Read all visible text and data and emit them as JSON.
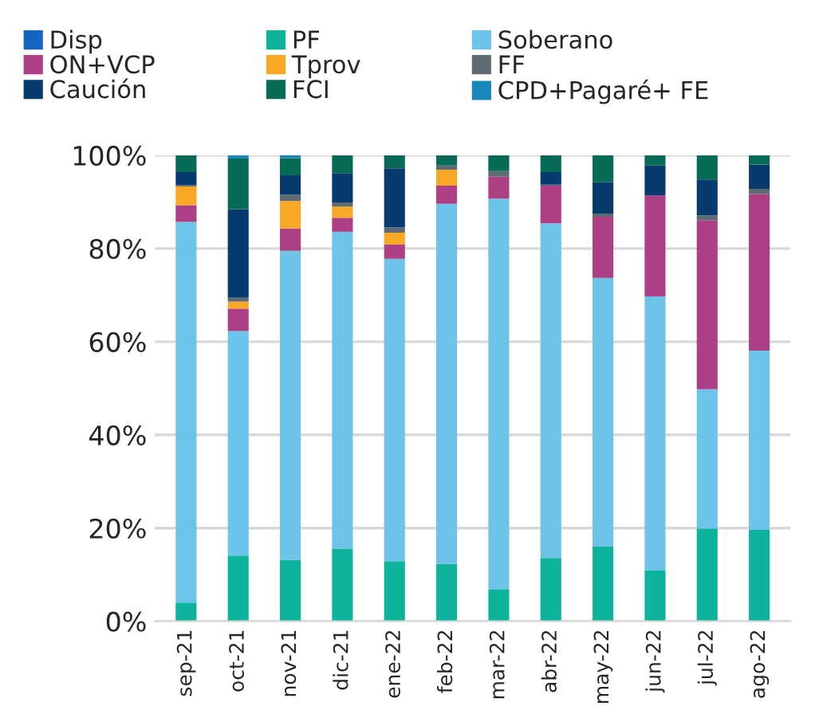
{
  "chart_data": {
    "type": "bar",
    "stacked": true,
    "categories": [
      "sep-21",
      "oct-21",
      "nov-21",
      "dic-21",
      "ene-22",
      "feb-22",
      "mar-22",
      "abr-22",
      "may-22",
      "jun-22",
      "jul-22",
      "ago-22"
    ],
    "series": [
      {
        "name": "Disp",
        "color": "#1565c0",
        "values": [
          0,
          0,
          0,
          0,
          0,
          0,
          0,
          0,
          0,
          0,
          0,
          0
        ]
      },
      {
        "name": "PF",
        "color": "#0db39a",
        "values": [
          4.0,
          14.1,
          13.2,
          15.6,
          12.9,
          12.3,
          6.8,
          13.6,
          16.0,
          10.9,
          19.9,
          19.6
        ]
      },
      {
        "name": "Soberano",
        "color": "#6ec3e8",
        "values": [
          81.7,
          48.2,
          66.3,
          68.0,
          64.9,
          77.3,
          83.9,
          71.8,
          57.7,
          58.8,
          29.9,
          38.5
        ]
      },
      {
        "name": "ON+VCP",
        "color": "#ad3f84",
        "values": [
          3.6,
          4.8,
          4.8,
          3.0,
          3.1,
          3.9,
          4.7,
          8.1,
          13.1,
          21.7,
          36.2,
          33.6
        ]
      },
      {
        "name": "Tprov",
        "color": "#f9a825",
        "values": [
          4.0,
          1.5,
          5.9,
          2.4,
          2.5,
          3.4,
          0,
          0,
          0,
          0,
          0,
          0
        ]
      },
      {
        "name": "FF",
        "color": "#5f6b73",
        "values": [
          0.3,
          0.8,
          1.3,
          0.9,
          1.1,
          0.9,
          1.2,
          0.2,
          0.7,
          0,
          1.1,
          1.1
        ]
      },
      {
        "name": "Caución",
        "color": "#073a6e",
        "values": [
          2.8,
          19.0,
          4.2,
          6.3,
          12.7,
          0,
          0,
          2.7,
          6.7,
          6.4,
          7.7,
          5.2
        ]
      },
      {
        "name": "FCI",
        "color": "#086b58",
        "values": [
          3.6,
          10.9,
          3.7,
          3.8,
          2.8,
          2.2,
          3.4,
          3.6,
          5.8,
          2.2,
          5.2,
          2.0
        ]
      },
      {
        "name": "CPD+Pagaré+ FE",
        "color": "#1a87bb",
        "values": [
          0,
          0.7,
          0.6,
          0,
          0,
          0,
          0,
          0,
          0,
          0,
          0,
          0
        ]
      }
    ],
    "ylim": [
      0,
      100
    ],
    "yticks": [
      {
        "value": 0,
        "label": "0%"
      },
      {
        "value": 20,
        "label": "20%"
      },
      {
        "value": 40,
        "label": "40%"
      },
      {
        "value": 60,
        "label": "60%"
      },
      {
        "value": 80,
        "label": "80%"
      },
      {
        "value": 100,
        "label": "100%"
      }
    ],
    "grid": "y",
    "legend": "top"
  }
}
